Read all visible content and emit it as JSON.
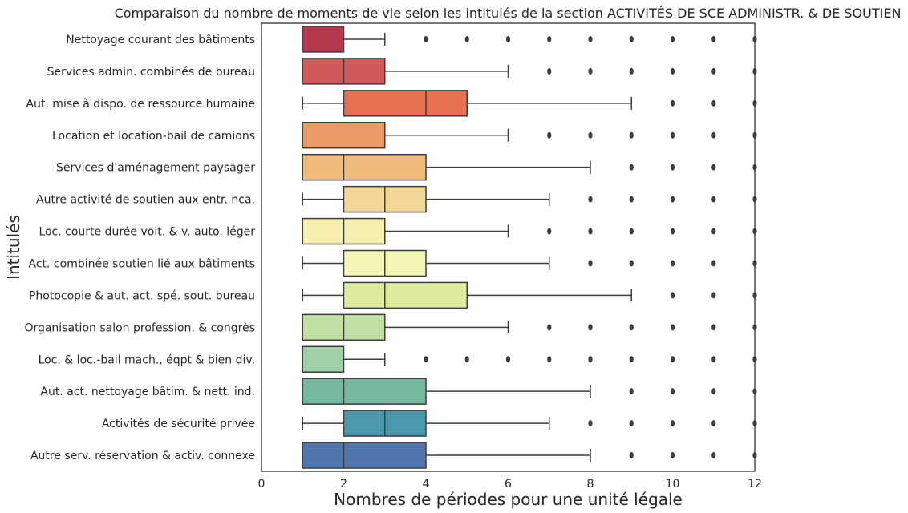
{
  "chart_data": {
    "type": "box",
    "title": "Comparaison du nombre de moments de vie selon les intitulés de la section ACTIVITÉS DE SCE ADMINISTR. & DE SOUTIEN",
    "xlabel": "Nombres de périodes pour une unité légale",
    "ylabel": "Intitulés",
    "xlim": [
      0,
      12
    ],
    "xticks": [
      0,
      2,
      4,
      6,
      8,
      10,
      12
    ],
    "grid": false,
    "series": [
      {
        "category": "Nettoyage courant des bâtiments",
        "whislo": 1,
        "q1": 1,
        "med": 1,
        "q3": 2,
        "whishi": 3,
        "fliers": [
          4,
          5,
          6,
          7,
          8,
          9,
          10,
          11,
          12
        ],
        "color": "#b5394f"
      },
      {
        "category": "Services admin. combinés de bureau",
        "whislo": 1,
        "q1": 1,
        "med": 2,
        "q3": 3,
        "whishi": 6,
        "fliers": [
          7,
          8,
          9,
          10,
          11,
          12
        ],
        "color": "#d05a5a"
      },
      {
        "category": "Aut. mise à dispo. de ressource humaine",
        "whislo": 1,
        "q1": 2,
        "med": 4,
        "q3": 5,
        "whishi": 9,
        "fliers": [
          10,
          11,
          12
        ],
        "color": "#e6704f"
      },
      {
        "category": "Location et location-bail de camions",
        "whislo": 1,
        "q1": 1,
        "med": 1,
        "q3": 3,
        "whishi": 6,
        "fliers": [
          7,
          8,
          9,
          10,
          11,
          12
        ],
        "color": "#eb9c68"
      },
      {
        "category": "Services d'aménagement paysager",
        "whislo": 1,
        "q1": 1,
        "med": 2,
        "q3": 4,
        "whishi": 8,
        "fliers": [
          9,
          10,
          11,
          12
        ],
        "color": "#f0bc7c"
      },
      {
        "category": "Autre activité de soutien aux entr. nca.",
        "whislo": 1,
        "q1": 2,
        "med": 3,
        "q3": 4,
        "whishi": 7,
        "fliers": [
          8,
          9,
          10,
          11,
          12
        ],
        "color": "#f3d796"
      },
      {
        "category": "Loc. courte durée voit. & v. auto. léger",
        "whislo": 1,
        "q1": 1,
        "med": 2,
        "q3": 3,
        "whishi": 6,
        "fliers": [
          7,
          8,
          9,
          10,
          11,
          12
        ],
        "color": "#f7efb0"
      },
      {
        "category": "Act. combinée soutien lié aux bâtiments",
        "whislo": 1,
        "q1": 2,
        "med": 3,
        "q3": 4,
        "whishi": 7,
        "fliers": [
          8,
          9,
          10,
          11,
          12
        ],
        "color": "#f3f6b5"
      },
      {
        "category": "Photocopie & aut. act. spé. sout. bureau",
        "whislo": 1,
        "q1": 2,
        "med": 3,
        "q3": 5,
        "whishi": 9,
        "fliers": [
          10,
          11,
          12
        ],
        "color": "#e0ea9c"
      },
      {
        "category": "Organisation salon profession. & congrès",
        "whislo": 1,
        "q1": 1,
        "med": 2,
        "q3": 3,
        "whishi": 6,
        "fliers": [
          7,
          8,
          9,
          10,
          11,
          12
        ],
        "color": "#c1dfa3"
      },
      {
        "category": "Loc. & loc.-bail mach., éqpt & bien div.",
        "whislo": 1,
        "q1": 1,
        "med": 1,
        "q3": 2,
        "whishi": 3,
        "fliers": [
          4,
          5,
          6,
          7,
          8,
          9,
          10,
          11,
          12
        ],
        "color": "#9fd0a8"
      },
      {
        "category": "Aut. act. nettoyage bâtim. & nett. ind.",
        "whislo": 1,
        "q1": 1,
        "med": 2,
        "q3": 4,
        "whishi": 8,
        "fliers": [
          9,
          10,
          11,
          12
        ],
        "color": "#74b89e"
      },
      {
        "category": "Activités de sécurité privée",
        "whislo": 1,
        "q1": 2,
        "med": 3,
        "q3": 4,
        "whishi": 7,
        "fliers": [
          8,
          9,
          10,
          11,
          12
        ],
        "color": "#4a98ad"
      },
      {
        "category": "Autre serv. réservation & activ. connexe",
        "whislo": 1,
        "q1": 1,
        "med": 2,
        "q3": 4,
        "whishi": 8,
        "fliers": [
          9,
          10,
          11,
          12
        ],
        "color": "#4f76ad"
      }
    ]
  }
}
